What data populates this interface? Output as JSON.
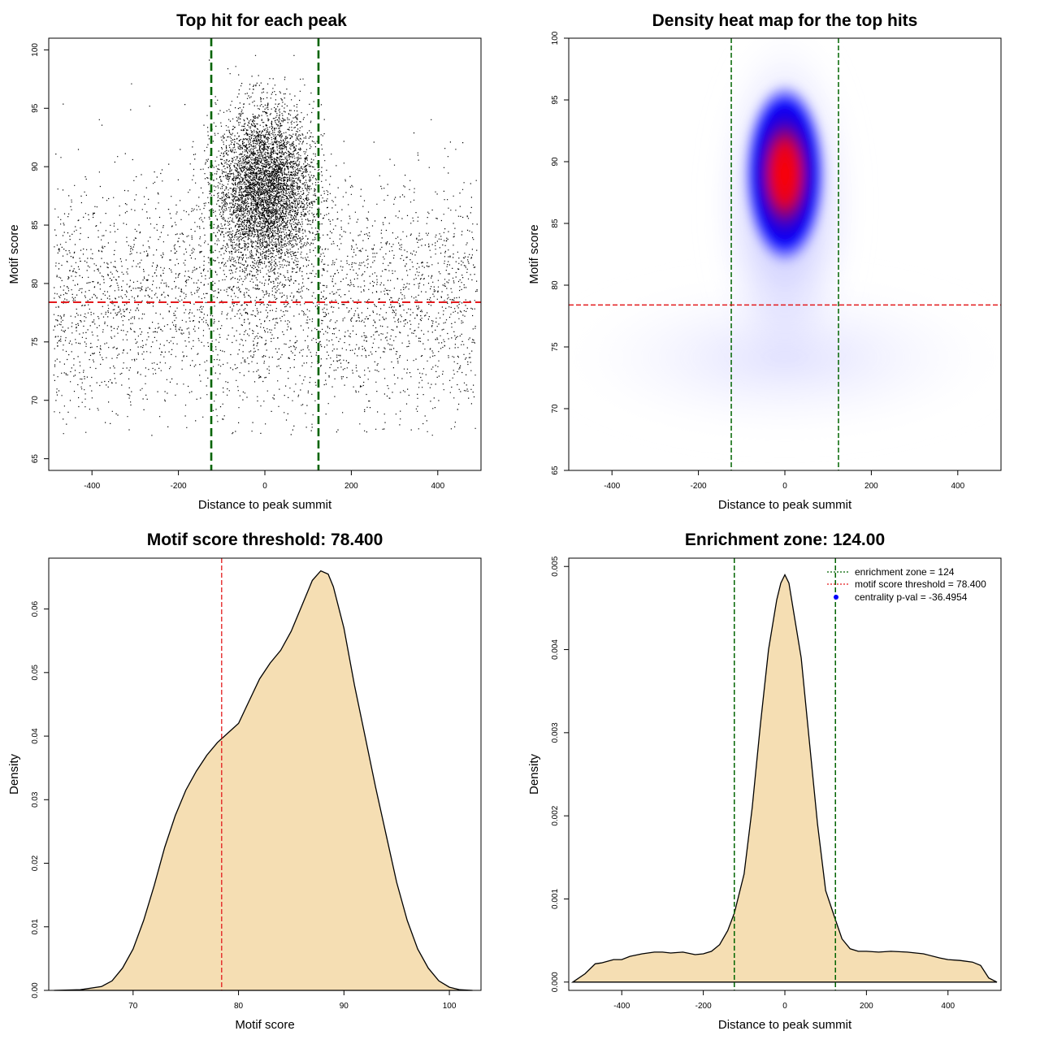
{
  "chart_data": [
    {
      "type": "scatter",
      "title": "Top hit for each peak",
      "xlabel": "Distance to peak summit",
      "ylabel": "Motif score",
      "xlim": [
        -500,
        500
      ],
      "ylim": [
        64,
        101
      ],
      "xticks": [
        -400,
        -200,
        0,
        200,
        400
      ],
      "yticks": [
        65,
        70,
        75,
        80,
        85,
        90,
        95,
        100
      ],
      "vlines": [
        -124,
        124
      ],
      "hline": 78.4,
      "colors": {
        "points": "#000000",
        "vlines": "#006400",
        "hline": "#e31a1c"
      },
      "point_clusters": [
        {
          "name": "background",
          "x_range": [
            -490,
            490
          ],
          "y_range": [
            67,
            98
          ],
          "count": 3400
        },
        {
          "name": "central",
          "x_center": 0,
          "x_sd": 55,
          "y_center": 88,
          "y_sd": 3.5,
          "count": 5200
        }
      ],
      "grid": false
    },
    {
      "type": "heatmap",
      "title": "Density heat map for the top hits",
      "xlabel": "Distance to peak summit",
      "ylabel": "Motif score",
      "xlim": [
        -500,
        500
      ],
      "ylim": [
        65,
        100
      ],
      "xticks": [
        -400,
        -200,
        0,
        200,
        400
      ],
      "yticks": [
        65,
        70,
        75,
        80,
        85,
        90,
        95,
        100
      ],
      "vlines": [
        -124,
        124
      ],
      "hline": 78.4,
      "peak": {
        "x": 0,
        "y": 89
      },
      "colors": {
        "low": "#ffffff",
        "mid": "#0000ff",
        "high": "#ff0000",
        "vlines": "#006400",
        "hline": "#e31a1c"
      }
    },
    {
      "type": "area",
      "title": "Motif score threshold: 78.400",
      "xlabel": "Motif score",
      "ylabel": "Density",
      "xlim": [
        62,
        103
      ],
      "ylim": [
        0,
        0.068
      ],
      "xticks": [
        70,
        80,
        90,
        100
      ],
      "yticks": [
        "0.00",
        "0.01",
        "0.02",
        "0.03",
        "0.04",
        "0.05",
        "0.06"
      ],
      "vline": 78.4,
      "x": [
        62.5,
        65,
        67,
        68,
        69,
        70,
        71,
        72,
        73,
        74,
        75,
        76,
        77,
        78,
        79,
        80,
        81,
        82,
        83,
        84,
        85,
        86,
        87,
        87.8,
        88.5,
        89,
        90,
        91,
        92,
        93,
        94,
        95,
        96,
        97,
        98,
        99,
        100,
        101,
        102.2
      ],
      "values": [
        0,
        0.0001,
        0.0006,
        0.0015,
        0.0035,
        0.0065,
        0.011,
        0.0165,
        0.0225,
        0.0275,
        0.0315,
        0.0345,
        0.037,
        0.039,
        0.0405,
        0.042,
        0.0455,
        0.049,
        0.0515,
        0.0535,
        0.0565,
        0.0605,
        0.0645,
        0.066,
        0.0655,
        0.0635,
        0.057,
        0.048,
        0.04,
        0.032,
        0.0245,
        0.017,
        0.011,
        0.0065,
        0.0035,
        0.0015,
        0.0005,
        0.0001,
        0
      ],
      "colors": {
        "fill": "#f5deb3",
        "line": "#000000",
        "vline": "#e31a1c"
      }
    },
    {
      "type": "area",
      "title": "Enrichment zone: 124.00",
      "xlabel": "Distance to peak summit",
      "ylabel": "Density",
      "xlim": [
        -530,
        530
      ],
      "ylim": [
        -0.0001,
        0.0051
      ],
      "xticks": [
        -400,
        -200,
        0,
        200,
        400
      ],
      "yticks": [
        "0.000",
        "0.001",
        "0.002",
        "0.003",
        "0.004",
        "0.005"
      ],
      "vlines": [
        -124,
        124
      ],
      "x": [
        -520,
        -490,
        -465,
        -450,
        -420,
        -400,
        -380,
        -350,
        -320,
        -300,
        -280,
        -250,
        -220,
        -200,
        -180,
        -160,
        -140,
        -124,
        -100,
        -80,
        -60,
        -40,
        -20,
        -10,
        0,
        10,
        20,
        40,
        60,
        80,
        100,
        124,
        140,
        160,
        180,
        200,
        230,
        260,
        300,
        340,
        380,
        400,
        430,
        460,
        480,
        500,
        520
      ],
      "values": [
        0,
        0.0001,
        0.00022,
        0.00023,
        0.00027,
        0.00027,
        0.00031,
        0.00034,
        0.00036,
        0.00036,
        0.00035,
        0.00036,
        0.00033,
        0.00034,
        0.00037,
        0.00045,
        0.00062,
        0.00083,
        0.0013,
        0.0021,
        0.0031,
        0.004,
        0.0046,
        0.0048,
        0.0049,
        0.0048,
        0.0045,
        0.0039,
        0.0029,
        0.0019,
        0.0011,
        0.00075,
        0.00052,
        0.0004,
        0.00037,
        0.00037,
        0.00036,
        0.00037,
        0.00036,
        0.00034,
        0.00029,
        0.00027,
        0.00026,
        0.00024,
        0.0002,
        5e-05,
        0
      ],
      "legend": {
        "position": "top-right",
        "items": [
          {
            "label": "enrichment zone = 124",
            "style": "dotted",
            "color": "#006400"
          },
          {
            "label": "motif score threshold = 78.400",
            "style": "dotted",
            "color": "#e31a1c"
          },
          {
            "label": "centrality p-val = -36.4954",
            "style": "point",
            "color": "#0000ff"
          }
        ]
      },
      "colors": {
        "fill": "#f5deb3",
        "line": "#000000",
        "vlines": "#006400"
      }
    }
  ]
}
